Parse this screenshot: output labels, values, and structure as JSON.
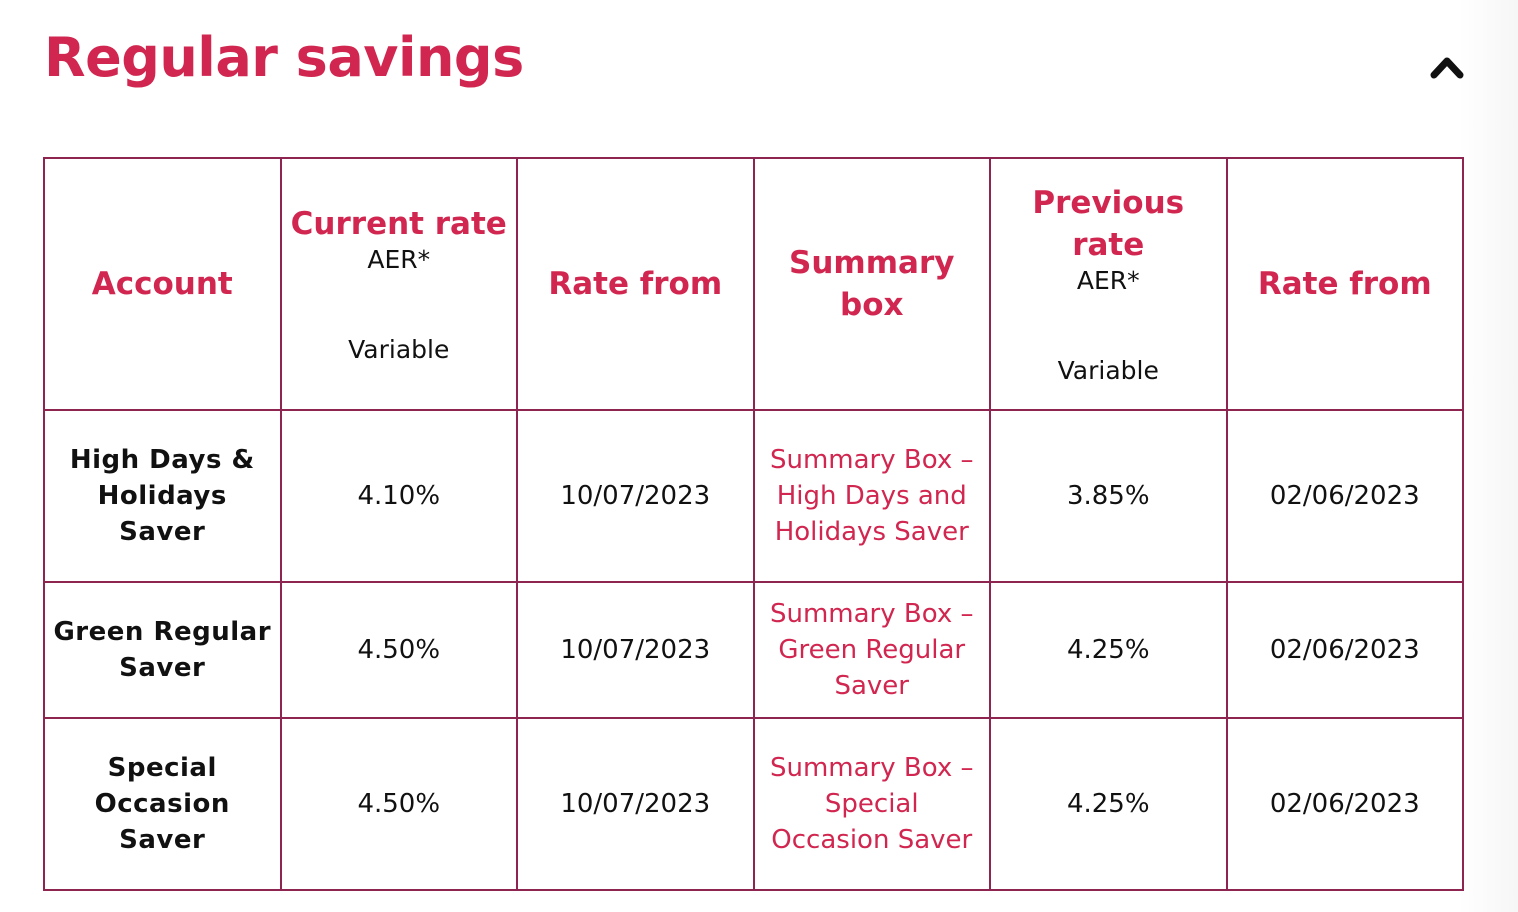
{
  "section": {
    "title": "Regular savings",
    "collapse_icon": "chevron-up-icon"
  },
  "colors": {
    "accent": "#d1264f",
    "border": "#8e2550"
  },
  "table": {
    "headers": {
      "account": "Account",
      "current_rate": "Current rate",
      "current_rate_aer": "AER*",
      "current_rate_type": "Variable",
      "rate_from": "Rate from",
      "summary_box": "Summary box",
      "previous_rate": "Previous rate",
      "previous_rate_aer": "AER*",
      "previous_rate_type": "Variable",
      "previous_rate_from": "Rate from"
    },
    "rows": [
      {
        "account": "High Days & Holidays Saver",
        "current_rate": "4.10%",
        "rate_from": "10/07/2023",
        "summary_link": "Summary Box – High Days and Holidays Saver",
        "previous_rate": "3.85%",
        "previous_rate_from": "02/06/2023"
      },
      {
        "account": "Green Regular Saver",
        "current_rate": "4.50%",
        "rate_from": "10/07/2023",
        "summary_link": "Summary Box – Green Regular Saver",
        "previous_rate": "4.25%",
        "previous_rate_from": "02/06/2023"
      },
      {
        "account": "Special Occasion Saver",
        "current_rate": "4.50%",
        "rate_from": "10/07/2023",
        "summary_link": "Summary Box – Special Occasion Saver",
        "previous_rate": "4.25%",
        "previous_rate_from": "02/06/2023"
      }
    ]
  }
}
